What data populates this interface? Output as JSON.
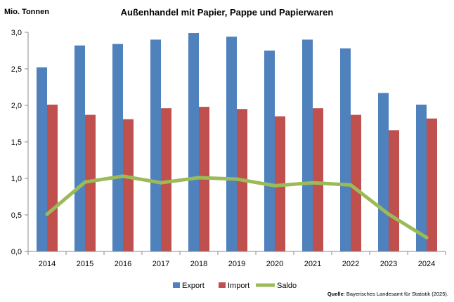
{
  "chart_data": {
    "type": "bar",
    "title": "Außenhandel mit Papier, Pappe und Papierwaren",
    "unit_label": "Mio. Tonnen",
    "xlabel": "",
    "ylabel": "",
    "categories": [
      "2014",
      "2015",
      "2016",
      "2017",
      "2018",
      "2019",
      "2020",
      "2021",
      "2022",
      "2023",
      "2024"
    ],
    "ylim": [
      0,
      3.0
    ],
    "yticks": [
      "0,0",
      "0,5",
      "1,0",
      "1,5",
      "2,0",
      "2,5",
      "3,0"
    ],
    "grid": false,
    "legend_position": "bottom",
    "series": [
      {
        "name": "Export",
        "type": "bar",
        "color": "#4f81bd",
        "values": [
          2.52,
          2.82,
          2.84,
          2.9,
          2.99,
          2.94,
          2.75,
          2.9,
          2.78,
          2.17,
          2.01
        ]
      },
      {
        "name": "Import",
        "type": "bar",
        "color": "#c0504d",
        "values": [
          2.01,
          1.87,
          1.81,
          1.96,
          1.98,
          1.95,
          1.85,
          1.96,
          1.87,
          1.66,
          1.82
        ]
      },
      {
        "name": "Saldo",
        "type": "line",
        "color": "#9bbb59",
        "values": [
          0.51,
          0.95,
          1.03,
          0.94,
          1.01,
          0.99,
          0.9,
          0.94,
          0.91,
          0.51,
          0.19
        ]
      }
    ],
    "source_label": "Quelle",
    "source_text": ": Bayerisches Landesamt für Statistik (2025)."
  }
}
